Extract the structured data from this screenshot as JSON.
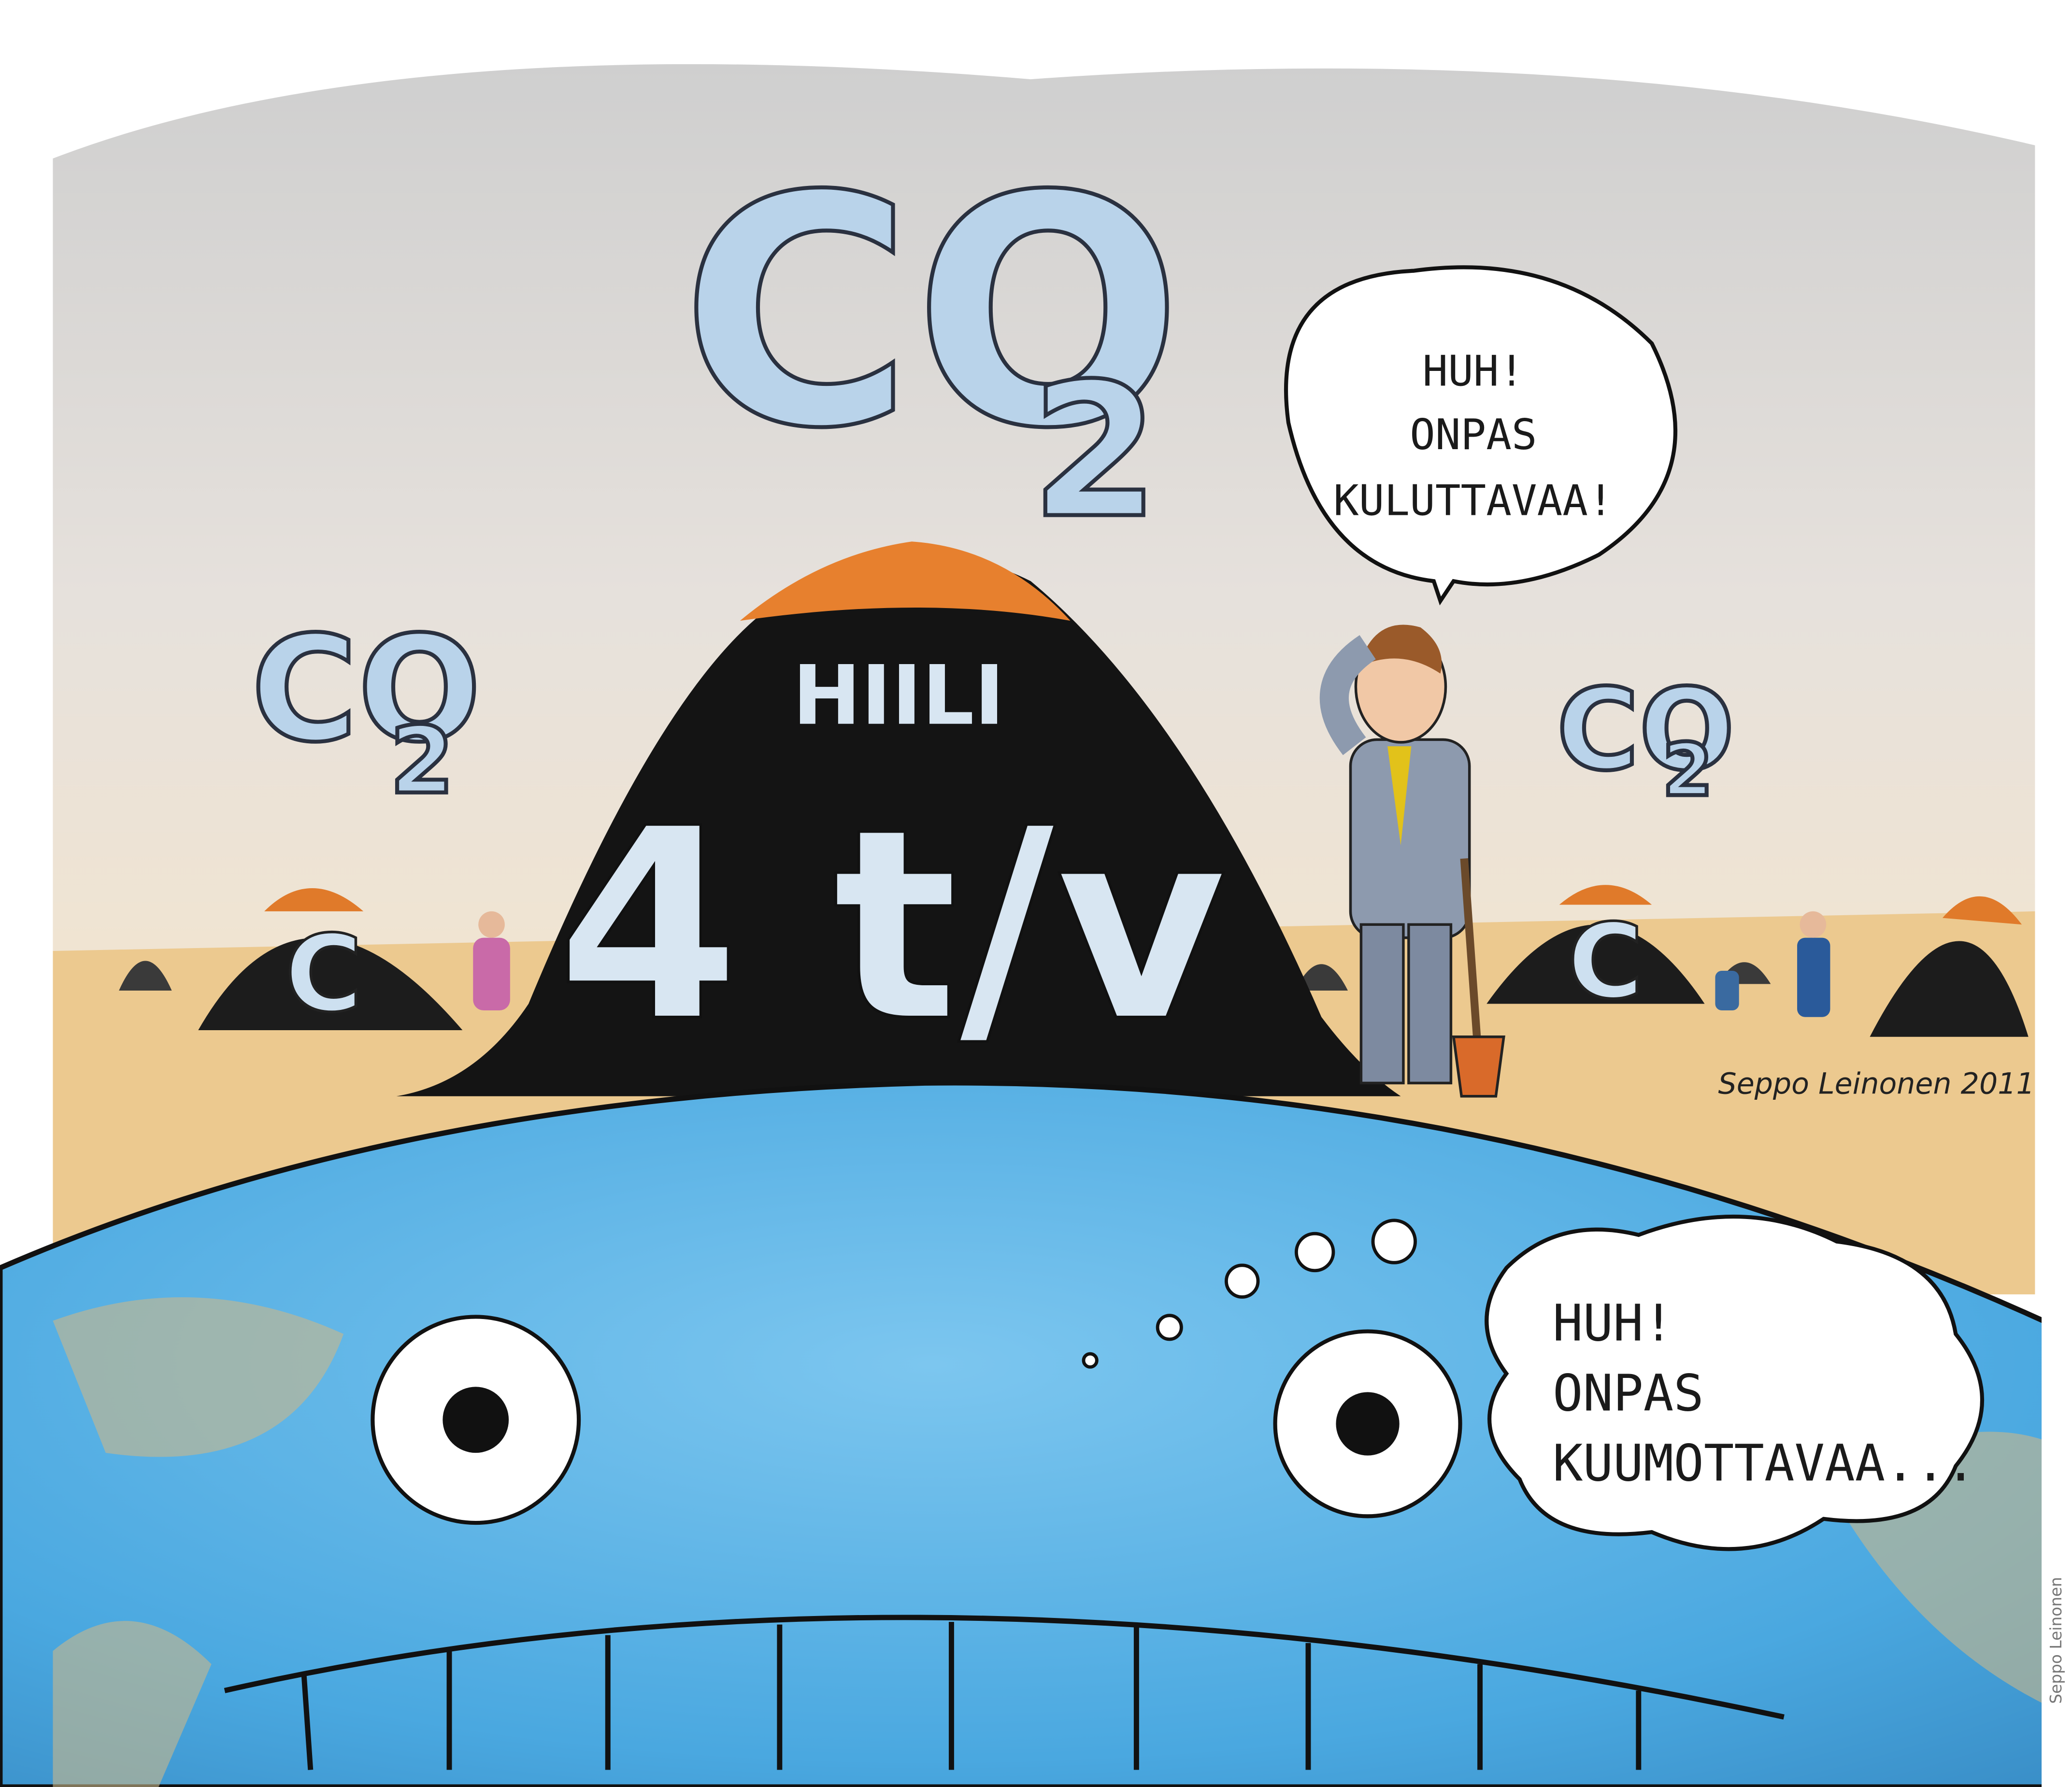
{
  "co2_labels": [
    {
      "text": "CO",
      "subscript": "2"
    },
    {
      "text": "CO",
      "subscript": "2"
    },
    {
      "text": "CO",
      "subscript": "2"
    }
  ],
  "pile": {
    "label": "HIILI",
    "amount": "4 t/v"
  },
  "small_piles": [
    "C",
    "C"
  ],
  "speech_bubble": {
    "lines": [
      "HUH!",
      "ONPAS",
      "KULUTTAVAA!"
    ]
  },
  "thought_bubble": {
    "lines": [
      "HUH!",
      "ONPAS",
      "KUUMOTTAVAA..."
    ]
  },
  "signature": "Seppo Leinonen 2011",
  "credit": "Seppo Leinonen"
}
